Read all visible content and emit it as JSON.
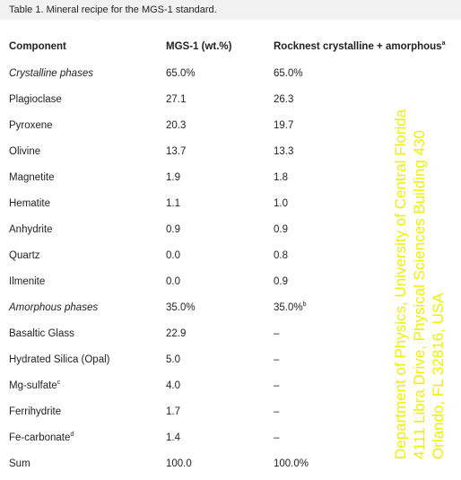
{
  "caption": "Table 1. Mineral recipe for the MGS-1 standard.",
  "table": {
    "header": [
      "Component",
      "MGS-1 (wt.%)",
      {
        "text": "Rocknest crystalline + amorphous",
        "sup": "a"
      }
    ],
    "rows": [
      {
        "italic": true,
        "cells": [
          "Crystalline phases",
          "65.0%",
          "65.0%"
        ]
      },
      {
        "cells": [
          "Plagioclase",
          "27.1",
          "26.3"
        ]
      },
      {
        "cells": [
          "Pyroxene",
          "20.3",
          "19.7"
        ]
      },
      {
        "cells": [
          "Olivine",
          "13.7",
          "13.3"
        ]
      },
      {
        "cells": [
          "Magnetite",
          "1.9",
          "1.8"
        ]
      },
      {
        "cells": [
          "Hematite",
          "1.1",
          "1.0"
        ]
      },
      {
        "cells": [
          "Anhydrite",
          "0.9",
          "0.9"
        ]
      },
      {
        "cells": [
          "Quartz",
          "0.0",
          "0.8"
        ]
      },
      {
        "cells": [
          "Ilmenite",
          "0.0",
          "0.9"
        ]
      },
      {
        "italic": true,
        "cells": [
          "Amorphous phases",
          "35.0%",
          {
            "text": "35.0%",
            "sup": "b"
          }
        ]
      },
      {
        "cells": [
          "Basaltic Glass",
          "22.9",
          "–"
        ]
      },
      {
        "cells": [
          "Hydrated Silica (Opal)",
          "5.0",
          "–"
        ]
      },
      {
        "cells": [
          {
            "text": "Mg-sulfate",
            "sup": "c"
          },
          "4.0",
          "–"
        ]
      },
      {
        "cells": [
          "Ferrihydrite",
          "1.7",
          "–"
        ]
      },
      {
        "cells": [
          {
            "text": "Fe-carbonate",
            "sup": "d"
          },
          "1.4",
          "–"
        ]
      },
      {
        "cells": [
          "Sum",
          "100.0",
          "100.0%"
        ]
      }
    ]
  },
  "overlay": [
    "Department of Physics, University of Central Florida",
    "4111 Libra Drive, Physical Sciences Building 430",
    "Orlando, FL 32816, USA"
  ]
}
